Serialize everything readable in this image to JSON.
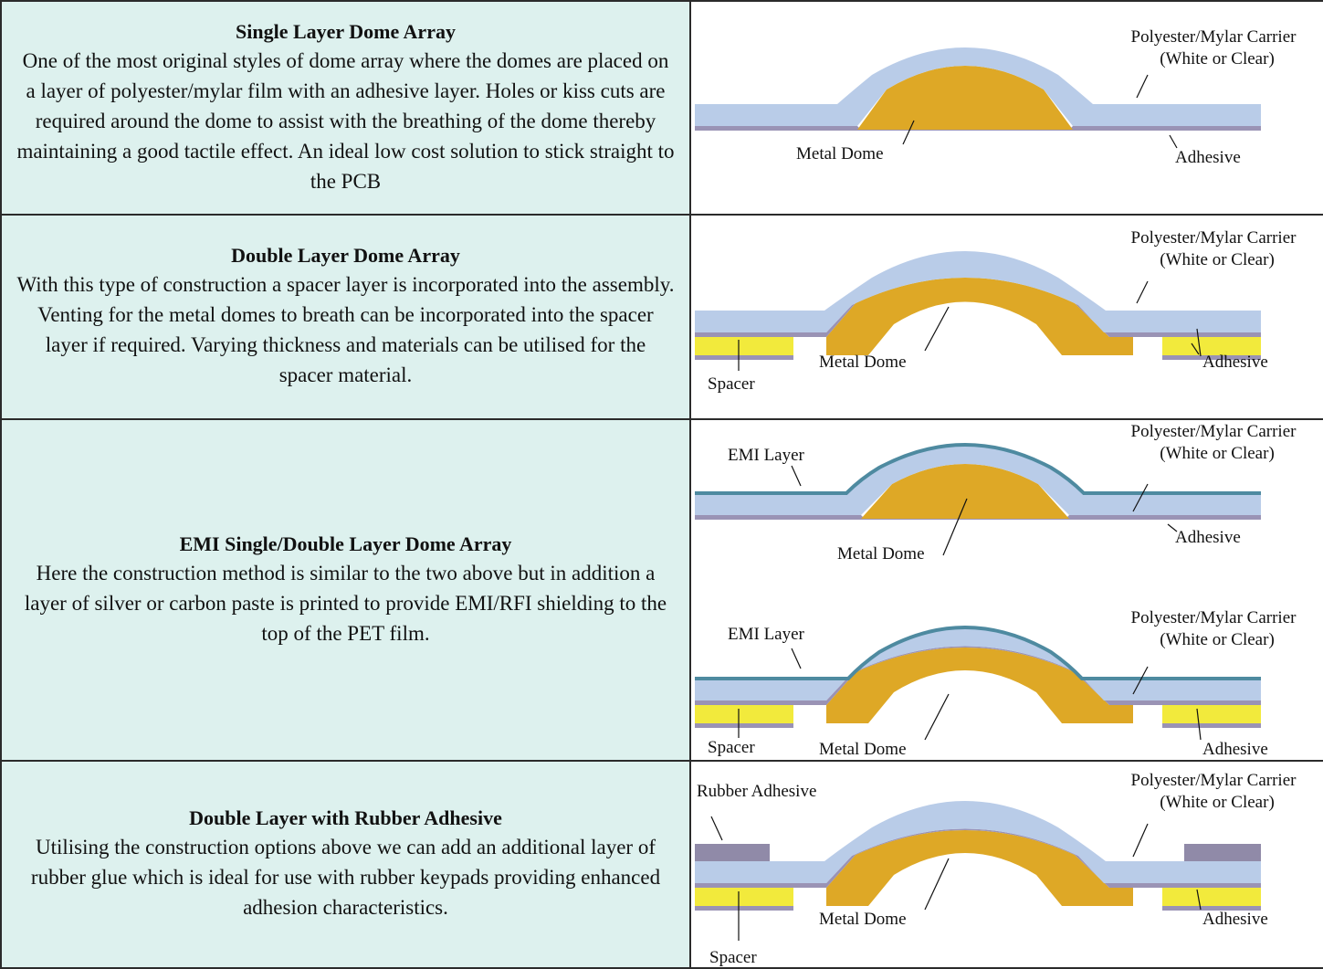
{
  "rows": [
    {
      "title": "Single Layer Dome Array",
      "body": "One of the most original styles of dome array where the domes are placed on a layer of polyester/mylar film with an adhesive layer. Holes or kiss cuts are required around the dome to assist with the breathing of the dome thereby maintaining a good tactile effect. An ideal low cost solution to stick straight to the PCB",
      "labels": {
        "carrier": "Polyester/Mylar Carrier",
        "carrier_sub": "(White or Clear)",
        "dome": "Metal Dome",
        "adhesive": "Adhesive"
      }
    },
    {
      "title": "Double Layer Dome Array",
      "body": "With this type of construction a spacer layer is incorporated into the assembly. Venting for the metal domes to breath can be incorporated into the spacer layer if required. Varying thickness and materials can be utilised for the spacer material.",
      "labels": {
        "carrier": "Polyester/Mylar Carrier",
        "carrier_sub": "(White or Clear)",
        "dome": "Metal Dome",
        "adhesive": "Adhesive",
        "spacer": "Spacer"
      }
    },
    {
      "title": "EMI Single/Double Layer Dome Array",
      "body": "Here the construction method is similar to the two above but in addition a layer of silver or carbon paste is printed to provide EMI/RFI shielding to the top of the PET film.",
      "labels_a": {
        "emi": "EMI Layer",
        "carrier": "Polyester/Mylar Carrier",
        "carrier_sub": "(White or Clear)",
        "dome": "Metal Dome",
        "adhesive": "Adhesive"
      },
      "labels_b": {
        "emi": "EMI Layer",
        "carrier": "Polyester/Mylar Carrier",
        "carrier_sub": "(White or Clear)",
        "dome": "Metal Dome",
        "adhesive": "Adhesive",
        "spacer": "Spacer"
      }
    },
    {
      "title": "Double Layer with Rubber Adhesive",
      "body": "Utilising the construction options above we can add an additional layer of rubber glue which is ideal for use with rubber keypads providing enhanced adhesion characteristics.",
      "labels": {
        "rubber": "Rubber Adhesive",
        "carrier": "Polyester/Mylar Carrier",
        "carrier_sub": "(White or Clear)",
        "dome": "Metal Dome",
        "adhesive": "Adhesive",
        "spacer": "Spacer"
      }
    }
  ],
  "colors": {
    "carrier": "#b9cce8",
    "adhesive": "#9a93b5",
    "dome": "#dea826",
    "spacer": "#f2ea3c",
    "emi": "#4e8aa0",
    "rubber": "#908aa8",
    "desc_bg": "#ddf1ee"
  }
}
